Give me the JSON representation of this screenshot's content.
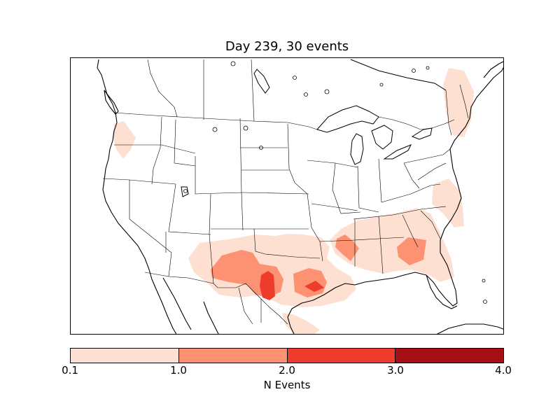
{
  "figure": {
    "title": "Day 239, 30 events"
  },
  "map": {
    "region": "North America (contiguous United States)",
    "colors": {
      "level_1": "#fee0d2",
      "level_2": "#fc9272",
      "level_3": "#ef3b2c",
      "level_4": "#a50f15",
      "coastline": "#000000",
      "background": "#ffffff"
    }
  },
  "colorbar": {
    "label": "N Events",
    "ticks": [
      "0.1",
      "1.0",
      "2.0",
      "3.0",
      "4.0"
    ],
    "colors": [
      "#fee0d2",
      "#fc9272",
      "#ef3b2c",
      "#a50f15"
    ]
  }
}
